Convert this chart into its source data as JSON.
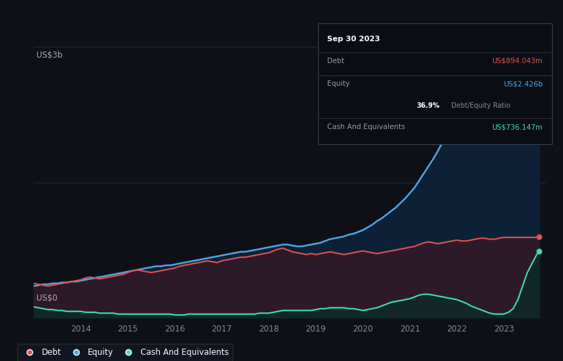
{
  "background_color": "#0d1117",
  "plot_bg_color": "#0d1117",
  "y_label_top": "US$3b",
  "y_label_bottom": "US$0",
  "x_ticks": [
    "2014",
    "2015",
    "2016",
    "2017",
    "2018",
    "2019",
    "2020",
    "2021",
    "2022",
    "2023"
  ],
  "grid_color": "#252a35",
  "debt_color": "#e05252",
  "equity_color": "#4da6e8",
  "cash_color": "#40e0b0",
  "legend_bg": "#131720",
  "legend_border": "#2a2e3a",
  "tooltip_bg": "#0a0d14",
  "tooltip_border": "#3a3f4e",
  "tooltip_title": "Sep 30 2023",
  "tooltip_debt_label": "Debt",
  "tooltip_debt_value": "US$894.043m",
  "tooltip_equity_label": "Equity",
  "tooltip_equity_value": "US$2.426b",
  "tooltip_ratio_value": "36.9%",
  "tooltip_ratio_label": "Debt/Equity Ratio",
  "tooltip_cash_label": "Cash And Equivalents",
  "tooltip_cash_value": "US$736.147m",
  "years": [
    2013.0,
    2013.1,
    2013.2,
    2013.3,
    2013.4,
    2013.5,
    2013.6,
    2013.7,
    2013.8,
    2013.9,
    2014.0,
    2014.1,
    2014.2,
    2014.3,
    2014.4,
    2014.5,
    2014.6,
    2014.7,
    2014.8,
    2014.9,
    2015.0,
    2015.1,
    2015.2,
    2015.3,
    2015.4,
    2015.5,
    2015.6,
    2015.7,
    2015.8,
    2015.9,
    2016.0,
    2016.1,
    2016.2,
    2016.3,
    2016.4,
    2016.5,
    2016.6,
    2016.7,
    2016.8,
    2016.9,
    2017.0,
    2017.1,
    2017.2,
    2017.3,
    2017.4,
    2017.5,
    2017.6,
    2017.7,
    2017.8,
    2017.9,
    2018.0,
    2018.1,
    2018.2,
    2018.3,
    2018.4,
    2018.5,
    2018.6,
    2018.7,
    2018.8,
    2018.9,
    2019.0,
    2019.1,
    2019.2,
    2019.3,
    2019.4,
    2019.5,
    2019.6,
    2019.7,
    2019.8,
    2019.9,
    2020.0,
    2020.1,
    2020.2,
    2020.3,
    2020.4,
    2020.5,
    2020.6,
    2020.7,
    2020.8,
    2020.9,
    2021.0,
    2021.1,
    2021.2,
    2021.3,
    2021.4,
    2021.5,
    2021.6,
    2021.7,
    2021.8,
    2021.9,
    2022.0,
    2022.1,
    2022.2,
    2022.3,
    2022.4,
    2022.5,
    2022.6,
    2022.7,
    2022.8,
    2022.9,
    2023.0,
    2023.1,
    2023.2,
    2023.3,
    2023.4,
    2023.5,
    2023.6,
    2023.7,
    2023.75
  ],
  "debt": [
    0.38,
    0.37,
    0.36,
    0.35,
    0.36,
    0.37,
    0.38,
    0.39,
    0.4,
    0.41,
    0.42,
    0.44,
    0.45,
    0.44,
    0.43,
    0.44,
    0.45,
    0.46,
    0.47,
    0.48,
    0.5,
    0.52,
    0.53,
    0.52,
    0.51,
    0.5,
    0.51,
    0.52,
    0.53,
    0.54,
    0.55,
    0.57,
    0.58,
    0.59,
    0.6,
    0.61,
    0.62,
    0.63,
    0.62,
    0.61,
    0.63,
    0.64,
    0.65,
    0.66,
    0.67,
    0.67,
    0.68,
    0.69,
    0.7,
    0.71,
    0.72,
    0.74,
    0.76,
    0.77,
    0.75,
    0.73,
    0.72,
    0.71,
    0.7,
    0.71,
    0.7,
    0.71,
    0.72,
    0.73,
    0.72,
    0.71,
    0.7,
    0.71,
    0.72,
    0.73,
    0.74,
    0.73,
    0.72,
    0.71,
    0.72,
    0.73,
    0.74,
    0.75,
    0.76,
    0.77,
    0.78,
    0.79,
    0.81,
    0.83,
    0.84,
    0.83,
    0.82,
    0.83,
    0.84,
    0.85,
    0.86,
    0.85,
    0.85,
    0.86,
    0.87,
    0.88,
    0.88,
    0.87,
    0.87,
    0.88,
    0.89,
    0.89,
    0.89,
    0.89,
    0.89,
    0.89,
    0.89,
    0.89,
    0.894
  ],
  "equity": [
    0.35,
    0.36,
    0.37,
    0.37,
    0.38,
    0.38,
    0.39,
    0.39,
    0.4,
    0.4,
    0.41,
    0.42,
    0.43,
    0.44,
    0.45,
    0.46,
    0.47,
    0.48,
    0.49,
    0.5,
    0.51,
    0.52,
    0.53,
    0.54,
    0.55,
    0.56,
    0.57,
    0.57,
    0.58,
    0.58,
    0.59,
    0.6,
    0.61,
    0.62,
    0.63,
    0.64,
    0.65,
    0.66,
    0.67,
    0.68,
    0.69,
    0.7,
    0.71,
    0.72,
    0.73,
    0.73,
    0.74,
    0.75,
    0.76,
    0.77,
    0.78,
    0.79,
    0.8,
    0.81,
    0.81,
    0.8,
    0.79,
    0.79,
    0.8,
    0.81,
    0.82,
    0.83,
    0.85,
    0.87,
    0.88,
    0.89,
    0.9,
    0.92,
    0.93,
    0.95,
    0.97,
    1.0,
    1.03,
    1.07,
    1.1,
    1.14,
    1.18,
    1.22,
    1.27,
    1.32,
    1.38,
    1.44,
    1.52,
    1.6,
    1.68,
    1.76,
    1.85,
    1.95,
    2.05,
    2.15,
    2.2,
    2.22,
    2.24,
    2.26,
    2.28,
    2.29,
    2.3,
    2.31,
    2.32,
    2.33,
    2.34,
    2.36,
    2.38,
    2.39,
    2.4,
    2.41,
    2.42,
    2.43,
    2.426
  ],
  "cash": [
    0.12,
    0.11,
    0.1,
    0.09,
    0.09,
    0.08,
    0.08,
    0.07,
    0.07,
    0.07,
    0.07,
    0.06,
    0.06,
    0.06,
    0.05,
    0.05,
    0.05,
    0.05,
    0.04,
    0.04,
    0.04,
    0.04,
    0.04,
    0.04,
    0.04,
    0.04,
    0.04,
    0.04,
    0.04,
    0.04,
    0.03,
    0.03,
    0.03,
    0.04,
    0.04,
    0.04,
    0.04,
    0.04,
    0.04,
    0.04,
    0.04,
    0.04,
    0.04,
    0.04,
    0.04,
    0.04,
    0.04,
    0.04,
    0.05,
    0.05,
    0.05,
    0.06,
    0.07,
    0.08,
    0.08,
    0.08,
    0.08,
    0.08,
    0.08,
    0.08,
    0.09,
    0.1,
    0.1,
    0.11,
    0.11,
    0.11,
    0.11,
    0.1,
    0.1,
    0.09,
    0.08,
    0.09,
    0.1,
    0.11,
    0.13,
    0.15,
    0.17,
    0.18,
    0.19,
    0.2,
    0.21,
    0.23,
    0.25,
    0.26,
    0.26,
    0.25,
    0.24,
    0.23,
    0.22,
    0.21,
    0.2,
    0.18,
    0.16,
    0.13,
    0.11,
    0.09,
    0.07,
    0.05,
    0.04,
    0.04,
    0.04,
    0.06,
    0.1,
    0.2,
    0.35,
    0.5,
    0.6,
    0.7,
    0.736
  ],
  "ylim": [
    0,
    3.0
  ],
  "xlim": [
    2013.0,
    2023.9
  ]
}
